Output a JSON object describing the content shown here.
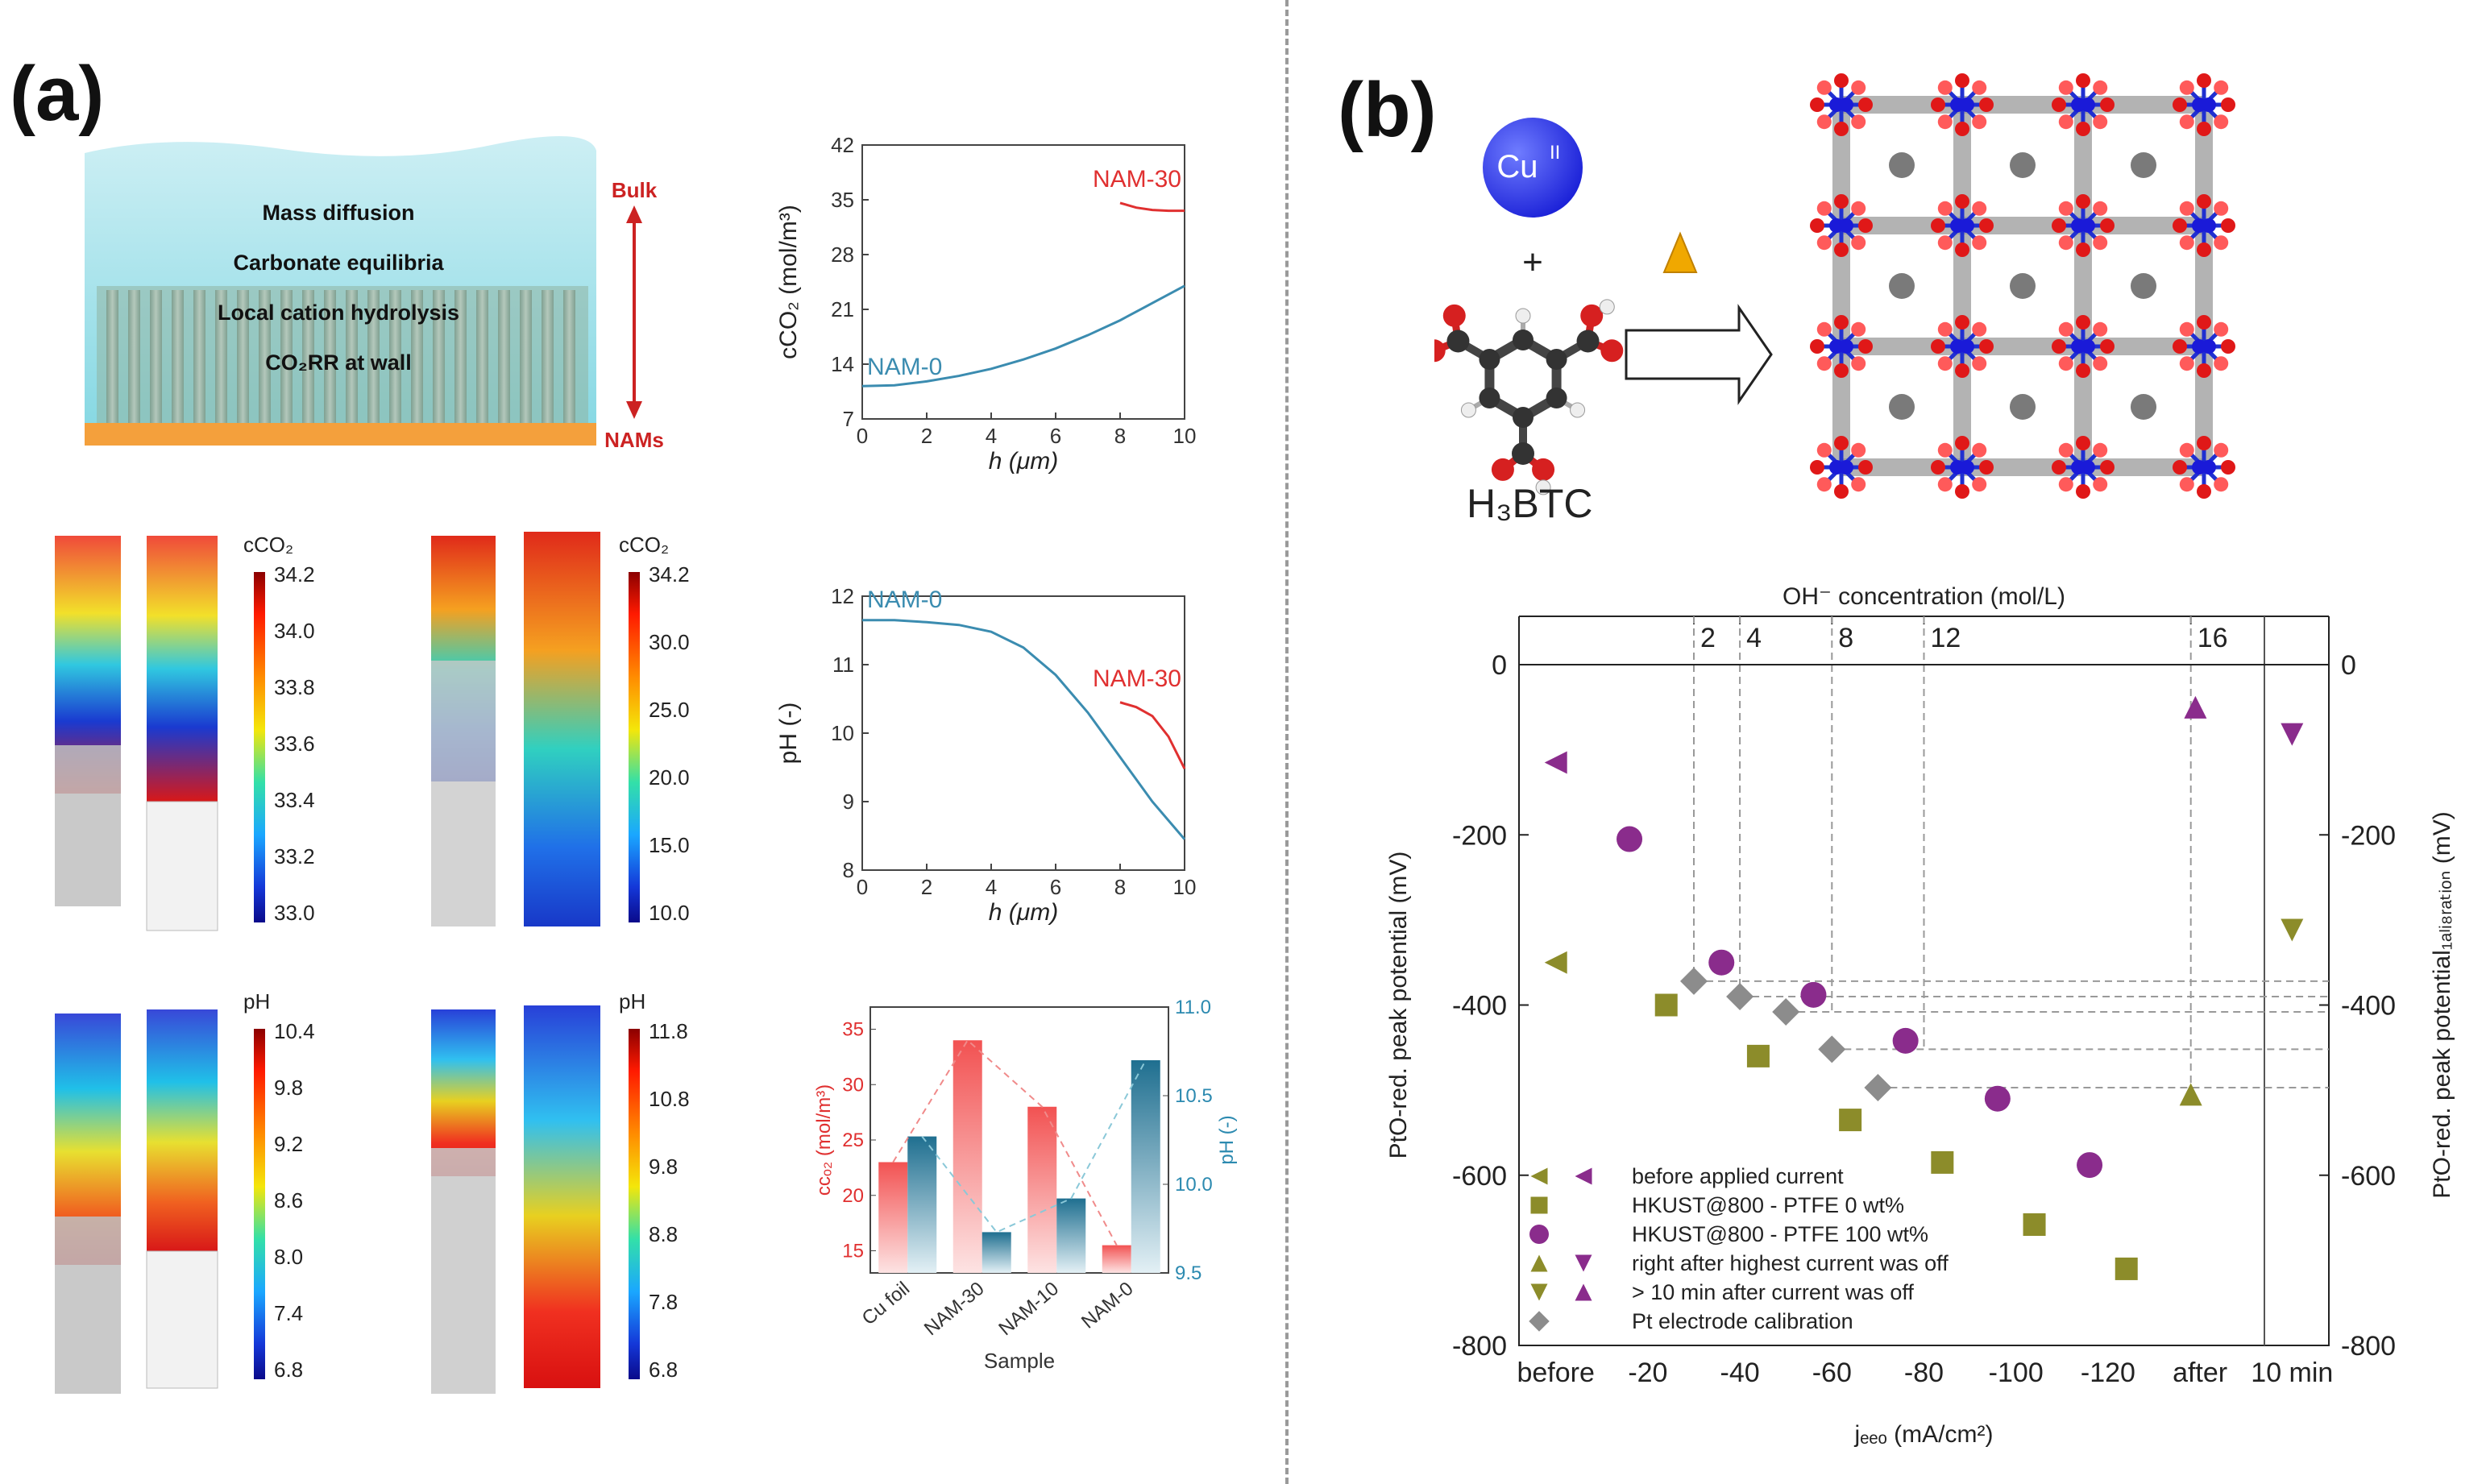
{
  "figure": {
    "panel_a_label": "(a)",
    "panel_b_label": "(b)"
  },
  "schematic": {
    "lines": [
      "Mass diffusion",
      "Carbonate equilibria",
      "Local cation hydrolysis",
      "CO₂RR at wall"
    ],
    "bulk_label": "Bulk",
    "nams_label": "NAMs"
  },
  "colorbars": [
    {
      "title": "cCO₂",
      "ticks": [
        "34.2",
        "34.0",
        "33.8",
        "33.6",
        "33.4",
        "33.2",
        "33.0"
      ]
    },
    {
      "title": "cCO₂",
      "ticks": [
        "34.2",
        "30.0",
        "25.0",
        "20.0",
        "15.0",
        "10.0"
      ]
    },
    {
      "title": "pH",
      "ticks": [
        "10.4",
        "9.8",
        "9.2",
        "8.6",
        "8.0",
        "7.4",
        "6.8"
      ]
    },
    {
      "title": "pH",
      "ticks": [
        "11.8",
        "10.8",
        "9.8",
        "8.8",
        "7.8",
        "6.8"
      ]
    }
  ],
  "chart_data": [
    {
      "type": "line",
      "id": "co2-vs-h",
      "xlabel": "h (μm)",
      "ylabel": "cCO₂ (mol/m³)",
      "xlim": [
        0,
        10
      ],
      "ylim": [
        7,
        42
      ],
      "xticks": [
        "0",
        "2",
        "4",
        "6",
        "8",
        "10"
      ],
      "yticks": [
        "7",
        "14",
        "21",
        "28",
        "35",
        "42"
      ],
      "series": [
        {
          "name": "NAM-0",
          "color": "#3b8cb0",
          "x": [
            0,
            1,
            2,
            3,
            4,
            5,
            6,
            7,
            8,
            9,
            10
          ],
          "y": [
            11.2,
            11.3,
            11.8,
            12.5,
            13.4,
            14.6,
            16.0,
            17.7,
            19.6,
            21.8,
            24.0
          ]
        },
        {
          "name": "NAM-30",
          "color": "#e03030",
          "x": [
            8,
            8.5,
            9,
            9.5,
            10
          ],
          "y": [
            34.6,
            34.0,
            33.7,
            33.6,
            33.6
          ]
        }
      ]
    },
    {
      "type": "line",
      "id": "ph-vs-h",
      "xlabel": "h (μm)",
      "ylabel": "pH (-)",
      "xlim": [
        0,
        10
      ],
      "ylim": [
        8,
        12
      ],
      "xticks": [
        "0",
        "2",
        "4",
        "6",
        "8",
        "10"
      ],
      "yticks": [
        "8",
        "9",
        "10",
        "11",
        "12"
      ],
      "series": [
        {
          "name": "NAM-0",
          "color": "#3b8cb0",
          "x": [
            0,
            1,
            2,
            3,
            4,
            5,
            6,
            7,
            8,
            9,
            10
          ],
          "y": [
            11.65,
            11.65,
            11.62,
            11.58,
            11.48,
            11.25,
            10.85,
            10.3,
            9.65,
            9.0,
            8.45
          ]
        },
        {
          "name": "NAM-30",
          "color": "#e03030",
          "x": [
            8,
            8.5,
            9,
            9.5,
            10
          ],
          "y": [
            10.45,
            10.38,
            10.25,
            9.95,
            9.48
          ]
        }
      ]
    },
    {
      "type": "bar",
      "id": "co2-ph-by-sample",
      "xlabel": "Sample",
      "ylabel": "cᴄₒ₂ (mol/m³)",
      "y2label": "pH (-)",
      "categories": [
        "Cu foil",
        "NAM-30",
        "NAM-10",
        "NAM-0"
      ],
      "ylim": [
        13,
        37
      ],
      "y2lim": [
        9.5,
        11.0
      ],
      "yticks": [
        "15",
        "20",
        "25",
        "30",
        "35"
      ],
      "y2ticks": [
        "9.5",
        "10.0",
        "10.5",
        "11.0"
      ],
      "series": [
        {
          "name": "cCO2",
          "axis": "left",
          "color": "#f05a5a",
          "values": [
            23.0,
            34.0,
            28.0,
            15.5
          ]
        },
        {
          "name": "pH",
          "axis": "right",
          "color": "#2c7a9a",
          "values": [
            10.27,
            9.73,
            9.92,
            10.7
          ]
        }
      ]
    },
    {
      "type": "scatter",
      "id": "pto-peak-potential",
      "title": "OH⁻ concentration (mol/L)",
      "xlabel": "jₑₑₒ (mA/cm²)",
      "ylabel": "PtO-red. peak potential (mV)",
      "y2label": "PtO-red. peak potential₁ₐₗᵢ₈ᵣₐₜᵢₒₙ (mV)",
      "categories": [
        "before",
        "-20",
        "-40",
        "-60",
        "-80",
        "-100",
        "-120",
        "after",
        "10 min"
      ],
      "top_ticks": [
        "2",
        "4",
        "8",
        "12",
        "16"
      ],
      "ylim": [
        -800,
        0
      ],
      "yticks": [
        "0",
        "-200",
        "-400",
        "-600",
        "-800"
      ],
      "series": [
        {
          "name": "HKUST@800 - PTFE 0 wt%",
          "marker": "square",
          "color": "#8c8c2a",
          "points": [
            [
              "-20",
              -400
            ],
            [
              "-40",
              -460
            ],
            [
              "-60",
              -535
            ],
            [
              "-80",
              -585
            ],
            [
              "-100",
              -658
            ],
            [
              "-120",
              -710
            ]
          ]
        },
        {
          "name": "HKUST@800 - PTFE 100 wt%",
          "marker": "circle",
          "color": "#8a2c8c",
          "points": [
            [
              "-20",
              -205
            ],
            [
              "-40",
              -350
            ],
            [
              "-60",
              -388
            ],
            [
              "-80",
              -442
            ],
            [
              "-100",
              -510
            ],
            [
              "-120",
              -588
            ]
          ]
        },
        {
          "name": "before applied current (0 wt%)",
          "marker": "tri-left",
          "color": "#8c8c2a",
          "points": [
            [
              "before",
              -350
            ]
          ]
        },
        {
          "name": "before applied current (100 wt%)",
          "marker": "tri-left",
          "color": "#8a2c8c",
          "points": [
            [
              "before",
              -115
            ]
          ]
        },
        {
          "name": "right after highest current was off (0 wt%)",
          "marker": "tri-up",
          "color": "#8c8c2a",
          "points": [
            [
              "after",
              -505
            ]
          ]
        },
        {
          "name": "> 10 min after current was off (100 wt%)",
          "marker": "tri-up",
          "color": "#8a2c8c",
          "points": [
            [
              "after",
              -50
            ]
          ]
        },
        {
          "name": "> 10 min after current was off (0 wt%)",
          "marker": "tri-down",
          "color": "#8c8c2a",
          "points": [
            [
              "10 min",
              -312
            ]
          ]
        },
        {
          "name": "right after highest current was off (100 wt%)",
          "marker": "tri-down",
          "color": "#8a2c8c",
          "points": [
            [
              "10 min",
              -82
            ]
          ]
        },
        {
          "name": "Pt electrode calibration",
          "marker": "diamond",
          "color": "#8c8c8c",
          "points": [
            [
              1.5,
              -372
            ],
            [
              2,
              -390
            ],
            [
              2.5,
              -408
            ],
            [
              3,
              -452
            ],
            [
              3.5,
              -497
            ]
          ]
        }
      ],
      "legend": [
        "before applied current",
        "HKUST@800 - PTFE 0 wt%",
        "HKUST@800 - PTFE 100 wt%",
        "right after highest current was off",
        "> 10 min after current was off",
        "Pt electrode calibration"
      ]
    }
  ],
  "mof_scheme": {
    "metal_label": "Cu",
    "metal_superscript": "II",
    "plus": "+",
    "linker_label": "H₃BTC"
  }
}
